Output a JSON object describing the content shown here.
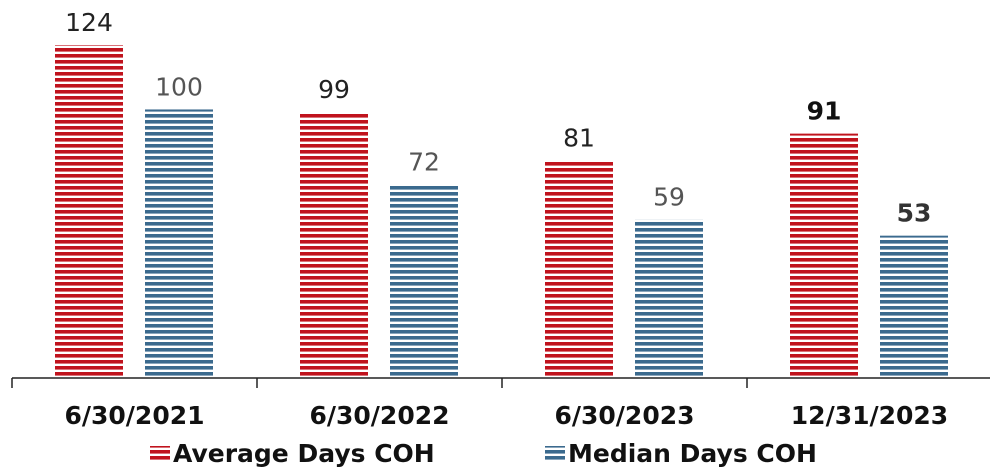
{
  "chart_data": {
    "type": "bar",
    "categories": [
      "6/30/2021",
      "6/30/2022",
      "6/30/2023",
      "12/31/2023"
    ],
    "series": [
      {
        "name": "Average Days COH",
        "color": "#c0131d",
        "values": [
          124,
          99,
          81,
          91
        ]
      },
      {
        "name": "Median Days COH",
        "color": "#3b6a8e",
        "values": [
          100,
          72,
          59,
          53
        ]
      }
    ]
  }
}
